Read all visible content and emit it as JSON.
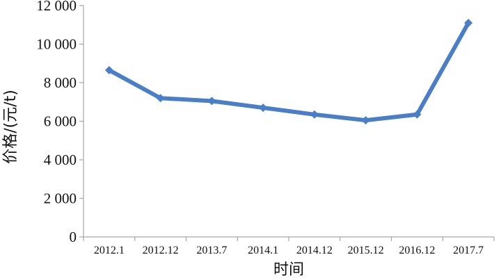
{
  "chart_data": {
    "type": "line",
    "categories": [
      "2012.1",
      "2012.12",
      "2013.7",
      "2014.1",
      "2014.12",
      "2015.12",
      "2016.12",
      "2017.7"
    ],
    "series": [
      {
        "values": [
          8650,
          7200,
          7050,
          6700,
          6350,
          6050,
          6350,
          11100
        ]
      }
    ],
    "yticks": [
      "0",
      "2 000",
      "4 000",
      "6 000",
      "8 000",
      "10 000",
      "12 000"
    ],
    "ylim": [
      0,
      12000
    ],
    "xlabel": "时间",
    "ylabel": "价格/(元/t)",
    "grid": false,
    "legend": "none",
    "colors": {
      "series": "#4a7fc8",
      "axis": "#a6a6a6"
    }
  }
}
